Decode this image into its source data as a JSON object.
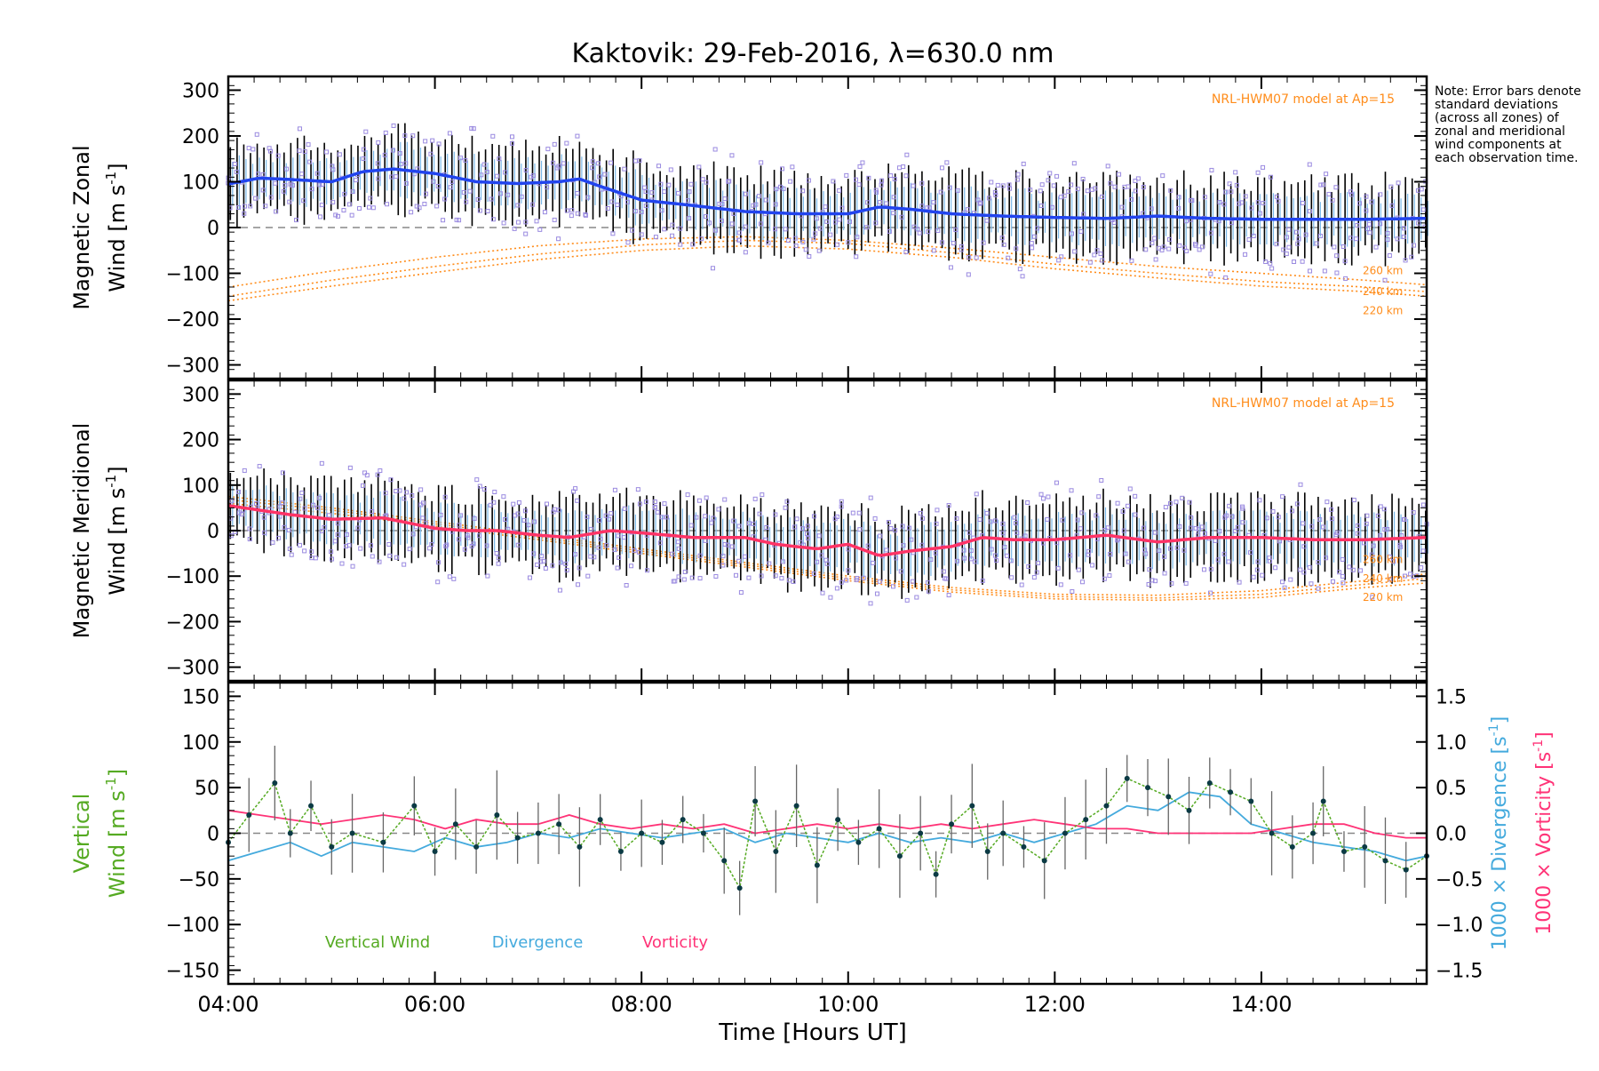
{
  "title": "Kaktovik: 29-Feb-2016, λ=630.0 nm",
  "note": "Note: Error bars denote standard deviations (across all zones) of zonal and meridional wind components at each observation time.",
  "x_axis": {
    "label": "Time [Hours UT]",
    "ticks": [
      "04:00",
      "06:00",
      "08:00",
      "10:00",
      "12:00",
      "14:00"
    ]
  },
  "colors": {
    "zonal": "#2244ee",
    "meridional": "#ff3366",
    "model": "#ff8c1a",
    "points": "#9a8ae0",
    "vertical": "#55aa22",
    "divergence": "#44aadd",
    "vorticity": "#ff3377",
    "errorbar": "#000000"
  },
  "chart_data": [
    {
      "id": "zonal",
      "type": "line",
      "ylabel_line1": "Magnetic Zonal",
      "ylabel_line2": "Wind [m s",
      "ylabel_sup": "-1",
      "ylabel_end": "]",
      "xlim": [
        4.0,
        15.6
      ],
      "ylim": [
        -330,
        330
      ],
      "yticks": [
        "300",
        "200",
        "100",
        "0",
        "−100",
        "−200",
        "−300"
      ],
      "ytick_values": [
        300,
        200,
        100,
        0,
        -100,
        -200,
        -300
      ],
      "model_label": "NRL-HWM07 model at Ap=15",
      "model_altitudes": [
        "260 km",
        "240 km",
        "220 km"
      ],
      "series": [
        {
          "role": "mean",
          "x": [
            4.0,
            4.3,
            4.6,
            5.0,
            5.3,
            5.6,
            6.0,
            6.4,
            6.8,
            7.2,
            7.4,
            7.6,
            8.0,
            8.5,
            9.0,
            9.5,
            10.0,
            10.3,
            10.6,
            11.0,
            11.5,
            12.0,
            12.5,
            13.0,
            13.5,
            14.0,
            14.5,
            15.0,
            15.6
          ],
          "y": [
            95,
            108,
            105,
            100,
            122,
            128,
            118,
            100,
            96,
            100,
            106,
            90,
            60,
            48,
            35,
            30,
            30,
            45,
            40,
            30,
            25,
            22,
            20,
            25,
            20,
            18,
            18,
            18,
            20
          ]
        },
        {
          "role": "model",
          "name": "260 km",
          "x": [
            4.0,
            5.0,
            6.0,
            7.0,
            8.0,
            9.0,
            10.0,
            11.0,
            12.0,
            13.0,
            14.0,
            15.0,
            15.6
          ],
          "y": [
            -130,
            -95,
            -65,
            -40,
            -25,
            -20,
            -28,
            -45,
            -65,
            -85,
            -100,
            -115,
            -125
          ]
        },
        {
          "role": "model",
          "name": "240 km",
          "x": [
            4.0,
            5.0,
            6.0,
            7.0,
            8.0,
            9.0,
            10.0,
            11.0,
            12.0,
            13.0,
            14.0,
            15.0,
            15.6
          ],
          "y": [
            -150,
            -115,
            -85,
            -58,
            -38,
            -28,
            -35,
            -55,
            -80,
            -100,
            -118,
            -130,
            -140
          ]
        },
        {
          "role": "model",
          "name": "220 km",
          "x": [
            4.0,
            5.0,
            6.0,
            7.0,
            8.0,
            9.0,
            10.0,
            11.0,
            12.0,
            13.0,
            14.0,
            15.0,
            15.6
          ],
          "y": [
            -160,
            -128,
            -98,
            -70,
            -50,
            -40,
            -47,
            -65,
            -90,
            -110,
            -128,
            -140,
            -150
          ]
        }
      ],
      "error_bar_sd": 80
    },
    {
      "id": "meridional",
      "type": "line",
      "ylabel_line1": "Magnetic Meridional",
      "ylabel_line2": "Wind [m s",
      "ylabel_sup": "-1",
      "ylabel_end": "]",
      "xlim": [
        4.0,
        15.6
      ],
      "ylim": [
        -330,
        330
      ],
      "yticks": [
        "300",
        "200",
        "100",
        "0",
        "−100",
        "−200",
        "−300"
      ],
      "ytick_values": [
        300,
        200,
        100,
        0,
        -100,
        -200,
        -300
      ],
      "model_label": "NRL-HWM07 model at Ap=15",
      "model_altitudes": [
        "260 km",
        "240 km",
        "220 km"
      ],
      "series": [
        {
          "role": "mean",
          "x": [
            4.0,
            4.3,
            4.6,
            5.0,
            5.5,
            6.0,
            6.3,
            6.6,
            7.0,
            7.3,
            7.7,
            8.0,
            8.5,
            9.0,
            9.3,
            9.7,
            10.0,
            10.3,
            10.6,
            11.0,
            11.3,
            11.6,
            12.0,
            12.5,
            13.0,
            13.5,
            14.0,
            14.5,
            15.0,
            15.6
          ],
          "y": [
            55,
            45,
            35,
            25,
            28,
            5,
            0,
            0,
            -10,
            -15,
            0,
            -5,
            -15,
            -15,
            -30,
            -40,
            -30,
            -55,
            -45,
            -35,
            -15,
            -20,
            -20,
            -10,
            -25,
            -15,
            -15,
            -20,
            -20,
            -15
          ]
        },
        {
          "role": "model",
          "name": "260 km",
          "x": [
            4.0,
            5.0,
            6.0,
            7.0,
            8.0,
            9.0,
            10.0,
            11.0,
            12.0,
            13.0,
            14.0,
            15.0,
            15.6
          ],
          "y": [
            75,
            50,
            20,
            -10,
            -40,
            -70,
            -100,
            -125,
            -140,
            -142,
            -132,
            -110,
            -95
          ]
        },
        {
          "role": "model",
          "name": "240 km",
          "x": [
            4.0,
            5.0,
            6.0,
            7.0,
            8.0,
            9.0,
            10.0,
            11.0,
            12.0,
            13.0,
            14.0,
            15.0,
            15.6
          ],
          "y": [
            68,
            45,
            15,
            -15,
            -45,
            -75,
            -105,
            -130,
            -145,
            -148,
            -140,
            -118,
            -105
          ]
        },
        {
          "role": "model",
          "name": "220 km",
          "x": [
            4.0,
            5.0,
            6.0,
            7.0,
            8.0,
            9.0,
            10.0,
            11.0,
            12.0,
            13.0,
            14.0,
            15.0,
            15.6
          ],
          "y": [
            60,
            38,
            10,
            -20,
            -50,
            -80,
            -110,
            -135,
            -150,
            -153,
            -147,
            -125,
            -115
          ]
        }
      ],
      "error_bar_sd": 80
    },
    {
      "id": "vertical",
      "type": "line",
      "ylabel_line1": "Vertical",
      "ylabel_line2": "Wind [m s",
      "ylabel_sup": "-1",
      "ylabel_end": "]",
      "xlim": [
        4.0,
        15.6
      ],
      "ylim": [
        -165,
        165
      ],
      "yticks": [
        "150",
        "100",
        "50",
        "0",
        "−50",
        "−100",
        "−150"
      ],
      "ytick_values": [
        150,
        100,
        50,
        0,
        -50,
        -100,
        -150
      ],
      "y2lim": [
        -1.65,
        1.65
      ],
      "y2ticks": [
        "1.5",
        "1.0",
        "0.5",
        "0.0",
        "−0.5",
        "−1.0",
        "−1.5"
      ],
      "y2tick_values": [
        1.5,
        1.0,
        0.5,
        0.0,
        -0.5,
        -1.0,
        -1.5
      ],
      "y2label_div_a": "1000 × Divergence [s",
      "y2label_div_sup": "-1",
      "y2label_div_end": "]",
      "y2label_vor_a": "1000 × Vorticity [s",
      "y2label_vor_sup": "-1",
      "y2label_vor_end": "]",
      "legend": [
        "Vertical Wind",
        "Divergence",
        "Vorticity"
      ],
      "series": [
        {
          "name": "Vertical Wind",
          "axis": "left",
          "x": [
            4.0,
            4.2,
            4.45,
            4.6,
            4.8,
            5.0,
            5.2,
            5.5,
            5.8,
            6.0,
            6.2,
            6.4,
            6.6,
            6.8,
            7.0,
            7.2,
            7.4,
            7.6,
            7.8,
            8.0,
            8.2,
            8.4,
            8.6,
            8.8,
            8.95,
            9.1,
            9.3,
            9.5,
            9.7,
            9.9,
            10.1,
            10.3,
            10.5,
            10.7,
            10.85,
            11.0,
            11.2,
            11.35,
            11.5,
            11.7,
            11.9,
            12.1,
            12.3,
            12.5,
            12.7,
            12.9,
            13.1,
            13.3,
            13.5,
            13.7,
            13.9,
            14.1,
            14.3,
            14.5,
            14.6,
            14.8,
            15.0,
            15.2,
            15.4,
            15.6
          ],
          "y": [
            -10,
            20,
            55,
            0,
            30,
            -15,
            0,
            -10,
            30,
            -20,
            10,
            -15,
            20,
            -5,
            0,
            10,
            -15,
            15,
            -20,
            0,
            -10,
            15,
            0,
            -30,
            -60,
            35,
            -20,
            30,
            -35,
            15,
            -10,
            5,
            -25,
            0,
            -45,
            10,
            30,
            -20,
            0,
            -15,
            -30,
            0,
            15,
            30,
            60,
            50,
            40,
            25,
            55,
            45,
            35,
            0,
            -15,
            0,
            35,
            -20,
            -15,
            -30,
            -40,
            -25
          ]
        },
        {
          "name": "Divergence",
          "axis": "right",
          "x": [
            4.0,
            4.3,
            4.6,
            4.9,
            5.2,
            5.5,
            5.8,
            6.1,
            6.4,
            6.7,
            7.0,
            7.3,
            7.6,
            7.9,
            8.2,
            8.5,
            8.8,
            9.1,
            9.4,
            9.7,
            10.0,
            10.3,
            10.6,
            10.9,
            11.2,
            11.5,
            11.8,
            12.1,
            12.4,
            12.7,
            13.0,
            13.3,
            13.6,
            13.9,
            14.2,
            14.5,
            14.8,
            15.1,
            15.4,
            15.6
          ],
          "y": [
            -0.3,
            -0.2,
            -0.1,
            -0.25,
            -0.1,
            -0.15,
            -0.2,
            -0.05,
            -0.15,
            -0.1,
            0.0,
            -0.05,
            0.05,
            0.0,
            -0.05,
            0.0,
            0.05,
            -0.1,
            0.0,
            -0.05,
            -0.1,
            0.0,
            -0.1,
            -0.05,
            -0.1,
            0.0,
            -0.1,
            0.0,
            0.1,
            0.3,
            0.25,
            0.45,
            0.4,
            0.1,
            0.0,
            -0.1,
            -0.15,
            -0.2,
            -0.3,
            -0.25
          ]
        },
        {
          "name": "Vorticity",
          "axis": "right",
          "x": [
            4.0,
            4.3,
            4.6,
            4.9,
            5.2,
            5.5,
            5.8,
            6.1,
            6.4,
            6.7,
            7.0,
            7.3,
            7.6,
            7.9,
            8.2,
            8.5,
            8.8,
            9.1,
            9.4,
            9.7,
            10.0,
            10.3,
            10.6,
            10.9,
            11.2,
            11.5,
            11.8,
            12.1,
            12.4,
            12.7,
            13.0,
            13.3,
            13.6,
            13.9,
            14.2,
            14.5,
            14.8,
            15.1,
            15.4,
            15.6
          ],
          "y": [
            0.25,
            0.2,
            0.15,
            0.1,
            0.15,
            0.2,
            0.15,
            0.05,
            0.15,
            0.1,
            0.1,
            0.2,
            0.1,
            0.05,
            0.1,
            0.05,
            0.1,
            0.0,
            0.05,
            0.1,
            0.05,
            0.1,
            0.05,
            0.1,
            0.05,
            0.1,
            0.15,
            0.1,
            0.05,
            0.05,
            0.0,
            0.0,
            0.0,
            0.0,
            0.05,
            0.1,
            0.1,
            0.0,
            -0.05,
            -0.05
          ]
        }
      ]
    }
  ]
}
